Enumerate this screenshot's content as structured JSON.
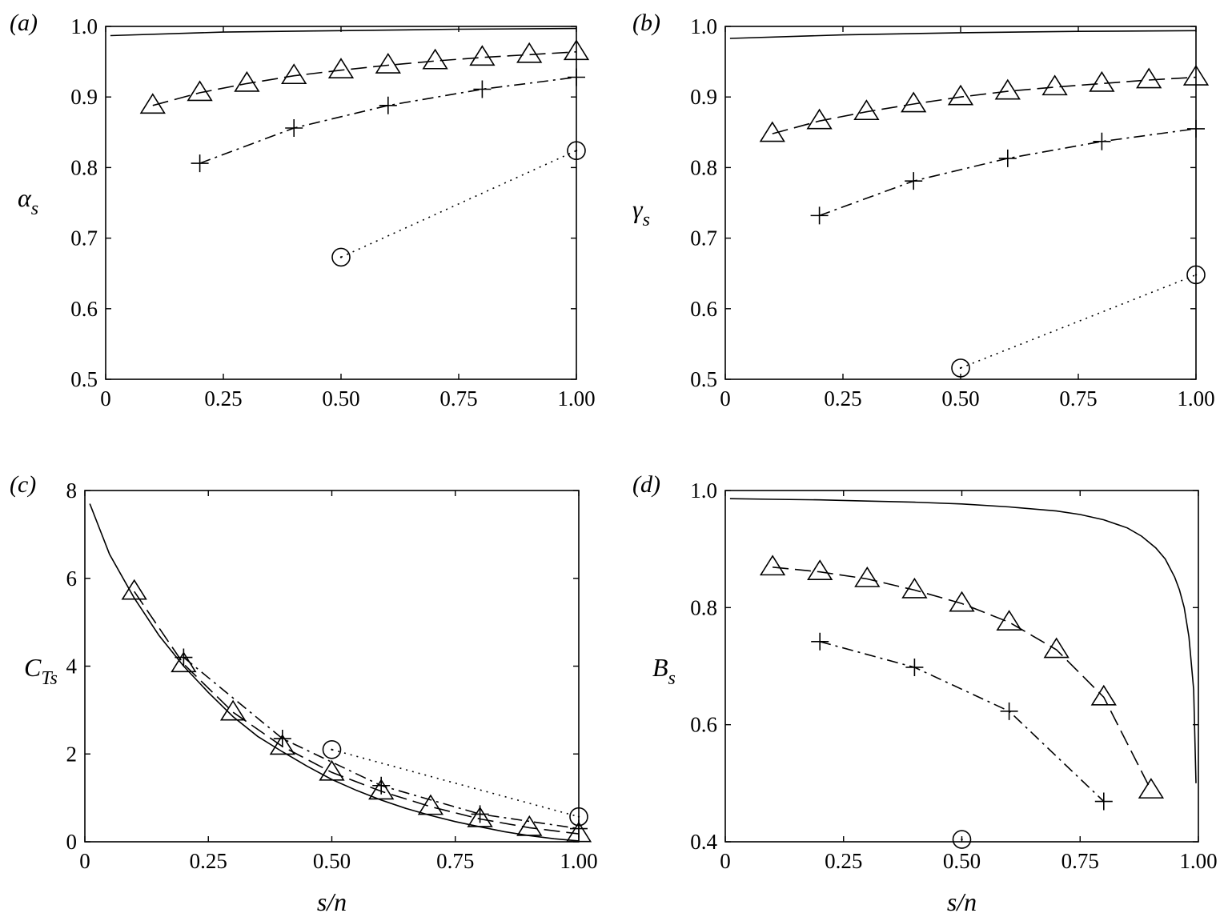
{
  "chart_data": [
    {
      "type": "line",
      "panel_label": "(a)",
      "ylabel": "α",
      "ylabel_sub": "s",
      "xlabel": "",
      "xlim": [
        0,
        1
      ],
      "ylim": [
        0.5,
        1.0
      ],
      "xticks": [
        0,
        0.25,
        0.5,
        0.75,
        1.0
      ],
      "xtick_labels": [
        "0",
        "0.25",
        "0.50",
        "0.75",
        "1.00"
      ],
      "yticks": [
        0.5,
        0.6,
        0.7,
        0.8,
        0.9,
        1.0
      ],
      "ytick_labels": [
        "0.5",
        "0.6",
        "0.7",
        "0.8",
        "0.9",
        "1.0"
      ],
      "series": [
        {
          "style": "solid",
          "marker": "none",
          "x": [
            0.01,
            0.25,
            0.5,
            0.75,
            1.0
          ],
          "y": [
            0.987,
            0.992,
            0.994,
            0.996,
            0.997
          ]
        },
        {
          "style": "dashed",
          "marker": "triangle",
          "x": [
            0.1,
            0.2,
            0.3,
            0.4,
            0.5,
            0.6,
            0.7,
            0.8,
            0.9,
            1.0
          ],
          "y": [
            0.888,
            0.906,
            0.919,
            0.93,
            0.938,
            0.945,
            0.951,
            0.956,
            0.96,
            0.964
          ]
        },
        {
          "style": "dashdot",
          "marker": "plus",
          "x": [
            0.2,
            0.4,
            0.6,
            0.8,
            1.0
          ],
          "y": [
            0.806,
            0.856,
            0.888,
            0.911,
            0.928
          ]
        },
        {
          "style": "dotted",
          "marker": "circle",
          "x": [
            0.5,
            1.0
          ],
          "y": [
            0.673,
            0.824
          ]
        }
      ]
    },
    {
      "type": "line",
      "panel_label": "(b)",
      "ylabel": "γ",
      "ylabel_sub": "s",
      "xlabel": "",
      "xlim": [
        0,
        1
      ],
      "ylim": [
        0.5,
        1.0
      ],
      "xticks": [
        0,
        0.25,
        0.5,
        0.75,
        1.0
      ],
      "xtick_labels": [
        "0",
        "0.25",
        "0.50",
        "0.75",
        "1.00"
      ],
      "yticks": [
        0.5,
        0.6,
        0.7,
        0.8,
        0.9,
        1.0
      ],
      "ytick_labels": [
        "0.5",
        "0.6",
        "0.7",
        "0.8",
        "0.9",
        "1.0"
      ],
      "series": [
        {
          "style": "solid",
          "marker": "none",
          "x": [
            0.01,
            0.25,
            0.5,
            0.75,
            1.0
          ],
          "y": [
            0.983,
            0.988,
            0.991,
            0.993,
            0.994
          ]
        },
        {
          "style": "dashed",
          "marker": "triangle",
          "x": [
            0.1,
            0.2,
            0.3,
            0.4,
            0.5,
            0.6,
            0.7,
            0.8,
            0.9,
            1.0
          ],
          "y": [
            0.848,
            0.866,
            0.879,
            0.89,
            0.9,
            0.908,
            0.914,
            0.919,
            0.924,
            0.928
          ]
        },
        {
          "style": "dashdot",
          "marker": "plus",
          "x": [
            0.2,
            0.4,
            0.6,
            0.8,
            1.0
          ],
          "y": [
            0.732,
            0.781,
            0.813,
            0.837,
            0.855
          ]
        },
        {
          "style": "dotted",
          "marker": "circle",
          "x": [
            0.5,
            1.0
          ],
          "y": [
            0.516,
            0.648
          ]
        }
      ]
    },
    {
      "type": "line",
      "panel_label": "(c)",
      "ylabel": "C",
      "ylabel_sub": "Ts",
      "xlabel": "s/n",
      "xlim": [
        0,
        1
      ],
      "ylim": [
        0,
        8
      ],
      "xticks": [
        0,
        0.25,
        0.5,
        0.75,
        1.0
      ],
      "xtick_labels": [
        "0",
        "0.25",
        "0.50",
        "0.75",
        "1.00"
      ],
      "yticks": [
        0,
        2,
        4,
        6,
        8
      ],
      "ytick_labels": [
        "0",
        "2",
        "4",
        "6",
        "8"
      ],
      "series": [
        {
          "style": "solid",
          "marker": "none",
          "x": [
            0.01,
            0.05,
            0.1,
            0.15,
            0.2,
            0.25,
            0.3,
            0.35,
            0.4,
            0.45,
            0.5,
            0.55,
            0.6,
            0.65,
            0.7,
            0.75,
            0.8,
            0.85,
            0.9,
            0.95,
            1.0
          ],
          "y": [
            7.7,
            6.55,
            5.55,
            4.7,
            4.0,
            3.4,
            2.85,
            2.4,
            2.05,
            1.72,
            1.42,
            1.17,
            0.95,
            0.76,
            0.6,
            0.46,
            0.34,
            0.23,
            0.14,
            0.07,
            0.02
          ]
        },
        {
          "style": "dashed",
          "marker": "triangle",
          "x": [
            0.1,
            0.2,
            0.3,
            0.4,
            0.5,
            0.6,
            0.7,
            0.8,
            0.9,
            1.0
          ],
          "y": [
            5.7,
            4.05,
            2.95,
            2.17,
            1.58,
            1.15,
            0.8,
            0.52,
            0.32,
            0.18
          ]
        },
        {
          "style": "dashdot",
          "marker": "plus",
          "x": [
            0.2,
            0.4,
            0.6,
            0.8,
            1.0
          ],
          "y": [
            4.2,
            2.35,
            1.28,
            0.63,
            0.3
          ]
        },
        {
          "style": "dotted",
          "marker": "circle",
          "x": [
            0.5,
            1.0
          ],
          "y": [
            2.1,
            0.57
          ]
        }
      ]
    },
    {
      "type": "line",
      "panel_label": "(d)",
      "ylabel": "B",
      "ylabel_sub": "s",
      "xlabel": "s/n",
      "xlim": [
        0,
        1
      ],
      "ylim": [
        0.4,
        1.0
      ],
      "xticks": [
        0,
        0.25,
        0.5,
        0.75,
        1.0
      ],
      "xtick_labels": [
        "0",
        "0.25",
        "0.50",
        "0.75",
        "1.00"
      ],
      "yticks": [
        0.4,
        0.6,
        0.8,
        1.0
      ],
      "ytick_labels": [
        "0.4",
        "0.6",
        "0.8",
        "1.0"
      ],
      "series": [
        {
          "style": "solid",
          "marker": "none",
          "x": [
            0.01,
            0.1,
            0.2,
            0.3,
            0.4,
            0.5,
            0.6,
            0.7,
            0.75,
            0.8,
            0.85,
            0.88,
            0.91,
            0.93,
            0.95,
            0.96,
            0.97,
            0.98,
            0.99,
            0.995
          ],
          "y": [
            0.986,
            0.985,
            0.984,
            0.982,
            0.98,
            0.977,
            0.972,
            0.965,
            0.959,
            0.95,
            0.936,
            0.922,
            0.902,
            0.883,
            0.852,
            0.83,
            0.8,
            0.75,
            0.66,
            0.5
          ]
        },
        {
          "style": "dashed",
          "marker": "triangle",
          "x": [
            0.1,
            0.2,
            0.3,
            0.4,
            0.5,
            0.6,
            0.7,
            0.8,
            0.9
          ],
          "y": [
            0.869,
            0.861,
            0.849,
            0.83,
            0.807,
            0.775,
            0.728,
            0.647,
            0.488
          ]
        },
        {
          "style": "dashdot",
          "marker": "plus",
          "x": [
            0.2,
            0.4,
            0.6,
            0.8
          ],
          "y": [
            0.742,
            0.698,
            0.623,
            0.469
          ]
        },
        {
          "style": "dotted",
          "marker": "circle",
          "x": [
            0.5
          ],
          "y": [
            0.404
          ]
        }
      ]
    }
  ]
}
